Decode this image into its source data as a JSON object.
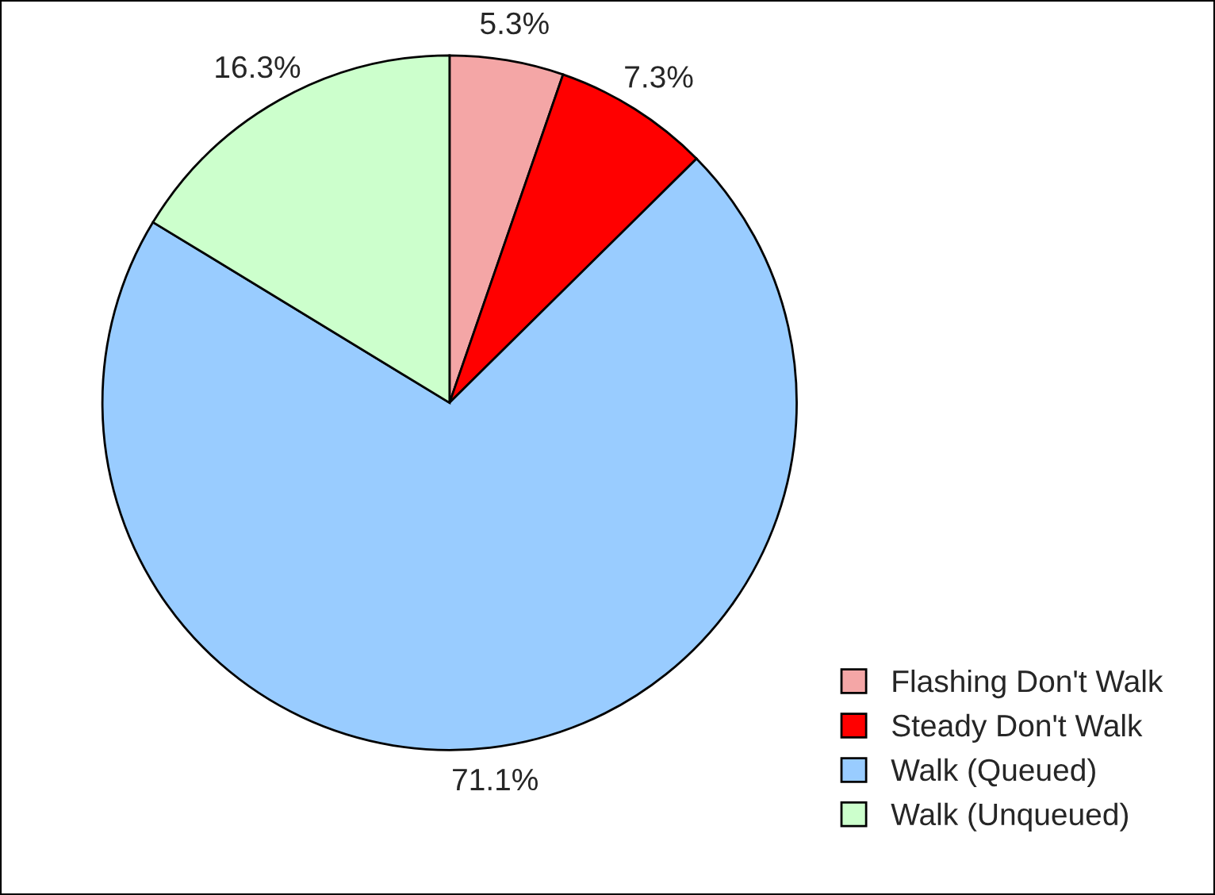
{
  "chart_data": {
    "type": "pie",
    "categories": [
      "Flashing Don't Walk",
      "Steady Don't Walk",
      "Walk (Queued)",
      "Walk (Unqueued)"
    ],
    "values": [
      5.3,
      7.3,
      71.1,
      16.3
    ],
    "value_labels": [
      "5.3%",
      "7.3%",
      "71.1%",
      "16.3%"
    ],
    "colors": [
      "#f4a6a6",
      "#ff0000",
      "#99ccff",
      "#ccffcc"
    ],
    "legend": "bottom right"
  }
}
